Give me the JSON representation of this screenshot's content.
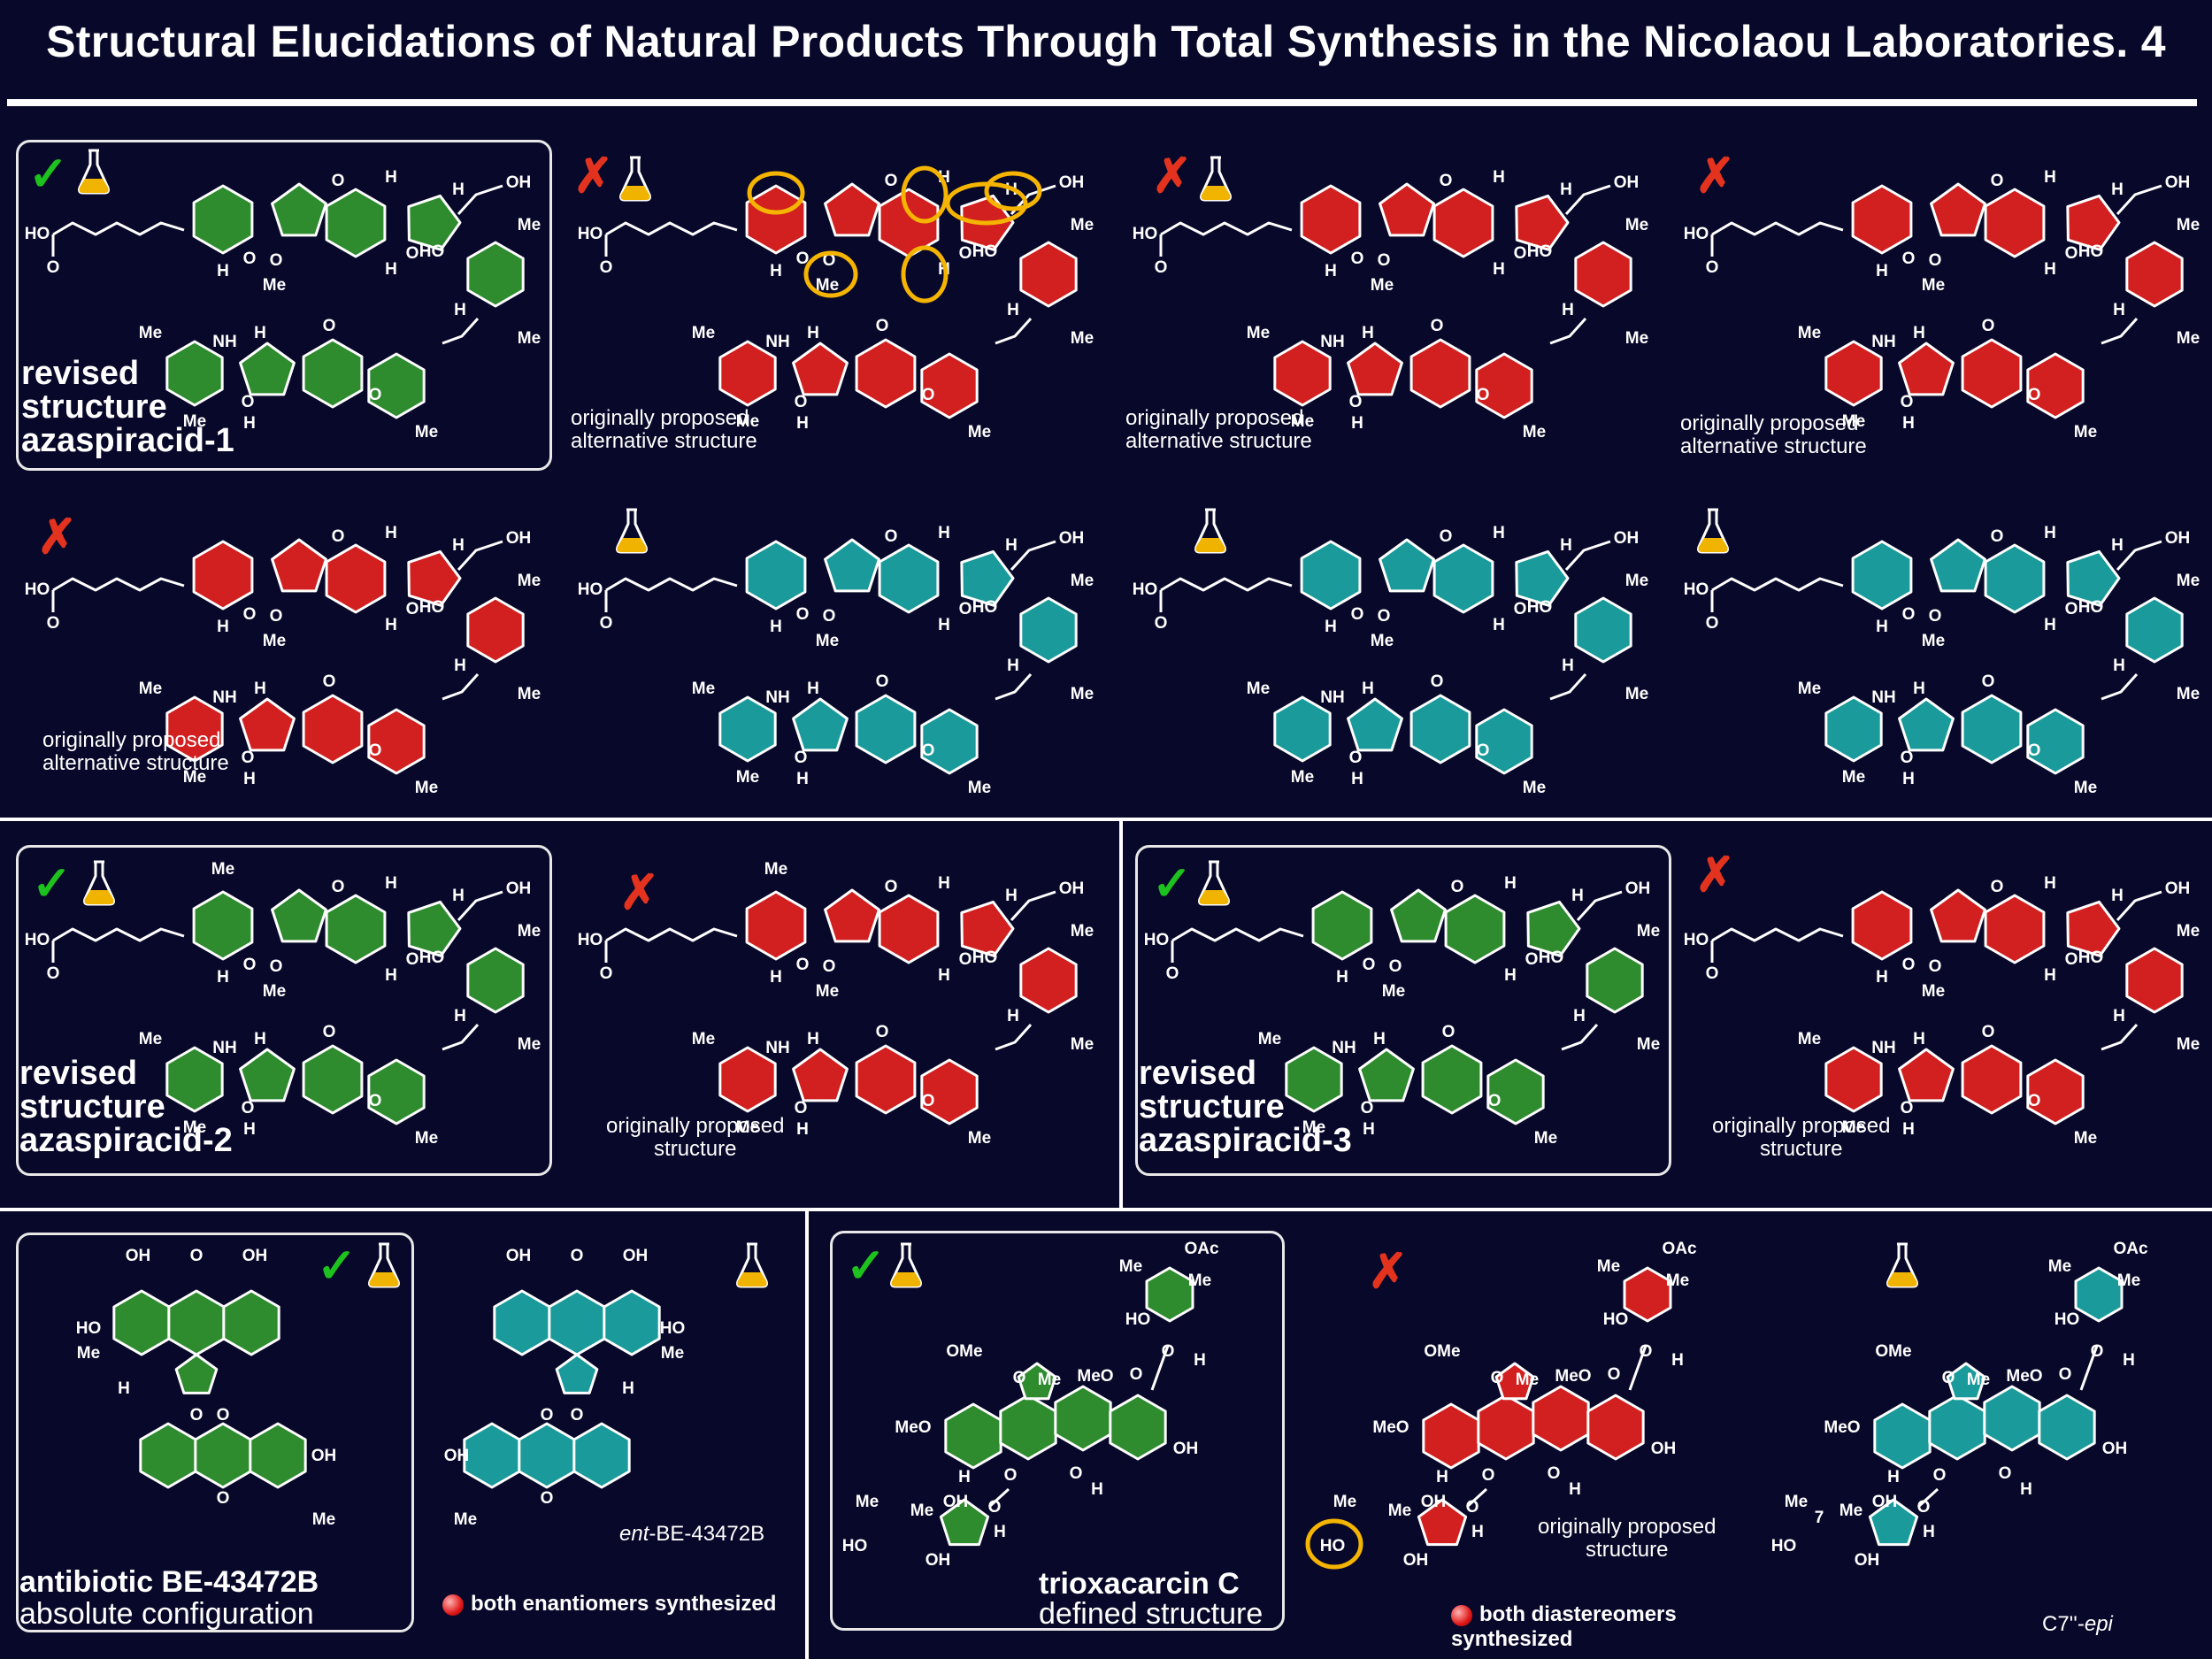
{
  "title": "Structural Elucidations of Natural Products Through Total Synthesis in the Nicolaou Laboratories. 4",
  "colors": {
    "background": "#08082a",
    "green": "#2e8b2e",
    "red": "#d21f1f",
    "teal": "#1a9a9a",
    "flask_liquid": "#f0b400",
    "highlight": "#f4b400"
  },
  "icons": {
    "check": "✓",
    "cross": "✗",
    "flask": "flask-icon"
  },
  "atoms": {
    "HO": "HO",
    "O": "O",
    "H": "H",
    "OH": "OH",
    "Me": "Me",
    "NH": "NH",
    "OAc": "OAc",
    "OMe": "OMe",
    "MeO": "MeO",
    "seven": "7"
  },
  "panels": {
    "p1": {
      "big_label": "revised\nstructure\nazaspiracid-1"
    },
    "p2": {
      "caption": "originally proposed\nalternative structure"
    },
    "p3": {
      "caption": "originally proposed\nalternative structure"
    },
    "p4": {
      "caption": "originally proposed\nalternative structure"
    },
    "p5": {
      "caption": "originally proposed\nalternative structure"
    },
    "p9": {
      "big_label": "revised\nstructure\nazaspiracid-2"
    },
    "p10": {
      "caption": "originally proposed\nstructure"
    },
    "p11": {
      "big_label": "revised\nstructure\nazaspiracid-3"
    },
    "p12": {
      "caption": "originally proposed\nstructure"
    },
    "p13": {
      "big_bold": "antibiotic BE-43472B",
      "big_sub": "absolute configuration"
    },
    "p14": {
      "caption_italic": "ent",
      "caption_rest": "-BE-43472B",
      "note": "both enantiomers synthesized"
    },
    "p15": {
      "big_bold": "trioxacarcin C",
      "big_sub": "defined structure"
    },
    "p16": {
      "caption": "originally proposed\nstructure",
      "note": "both diastereomers synthesized"
    },
    "p17": {
      "caption_rest": "C7''-",
      "caption_italic": "epi"
    }
  }
}
